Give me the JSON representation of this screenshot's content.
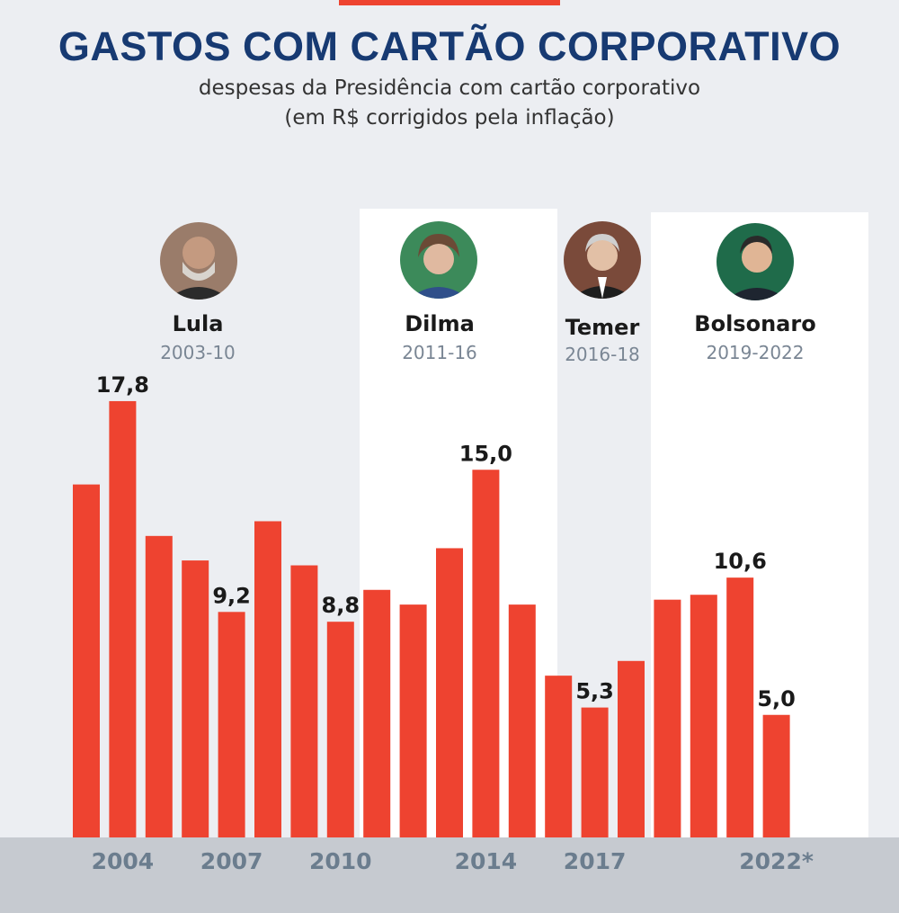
{
  "header": {
    "title": "GASTOS COM CARTÃO CORPORATIVO",
    "subtitle_line1": "despesas da Presidência com cartão corporativo",
    "subtitle_line2": "(em R$ corrigidos pela inflação)"
  },
  "presidents": [
    {
      "name": "Lula",
      "term": "2003-10"
    },
    {
      "name": "Dilma",
      "term": "2011-16"
    },
    {
      "name": "Temer",
      "term": "2016-18"
    },
    {
      "name": "Bolsonaro",
      "term": "2019-2022"
    }
  ],
  "colors": {
    "bar": "#ee4330",
    "title": "#173a72",
    "accent": "#ee4330"
  },
  "chart_data": {
    "type": "bar",
    "title": "GASTOS COM CARTÃO CORPORATIVO",
    "x": [
      "2003",
      "2004",
      "2005",
      "2006",
      "2007",
      "2008",
      "2009",
      "2010",
      "2011",
      "2012",
      "2013",
      "2014",
      "2015",
      "2016",
      "2017",
      "2018",
      "2019",
      "2020",
      "2021",
      "2022*"
    ],
    "values": [
      14.4,
      17.8,
      12.3,
      11.3,
      9.2,
      12.9,
      11.1,
      8.8,
      10.1,
      9.5,
      11.8,
      15.0,
      9.5,
      6.6,
      5.3,
      7.2,
      9.7,
      9.9,
      10.6,
      5.0
    ],
    "labels": [
      "",
      "17,8",
      "",
      "",
      "9,2",
      "",
      "",
      "8,8",
      "",
      "",
      "",
      "15,0",
      "",
      "",
      "5,3",
      "",
      "",
      "",
      "10,6",
      "5,0"
    ],
    "tick_labels": [
      "",
      "2004",
      "",
      "",
      "2007",
      "",
      "",
      "2010",
      "",
      "",
      "",
      "2014",
      "",
      "",
      "2017",
      "",
      "",
      "",
      "",
      "2022*"
    ],
    "ylim": [
      0,
      20
    ],
    "grid": false,
    "legend": "none"
  }
}
